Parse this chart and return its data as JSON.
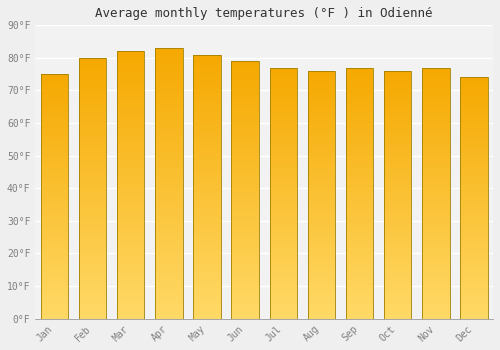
{
  "title": "Average monthly temperatures (°F ) in Odienné",
  "months": [
    "Jan",
    "Feb",
    "Mar",
    "Apr",
    "May",
    "Jun",
    "Jul",
    "Aug",
    "Sep",
    "Oct",
    "Nov",
    "Dec"
  ],
  "values": [
    75,
    80,
    82,
    83,
    81,
    79,
    77,
    76,
    77,
    76,
    77,
    74
  ],
  "bar_color_top": "#F5A800",
  "bar_color_bottom": "#FFD966",
  "bar_edge_color": "#A08000",
  "background_color": "#EFEFEF",
  "plot_bg_color": "#F2F2F2",
  "grid_color": "#FFFFFF",
  "ylim": [
    0,
    90
  ],
  "yticks": [
    0,
    10,
    20,
    30,
    40,
    50,
    60,
    70,
    80,
    90
  ],
  "title_fontsize": 9,
  "axis_fontsize": 7,
  "tick_color": "#808080"
}
